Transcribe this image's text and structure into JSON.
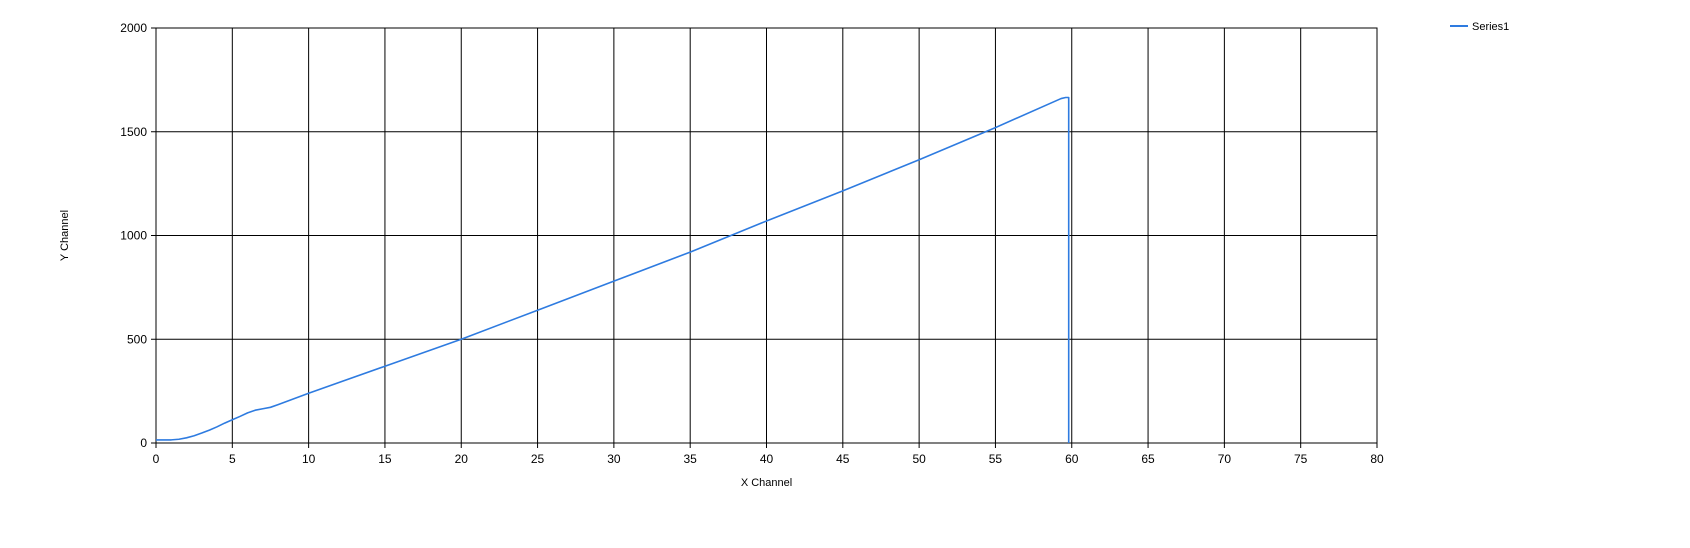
{
  "chart_data": {
    "type": "line",
    "title": "",
    "xlabel": "X Channel",
    "ylabel": "Y Channel",
    "xlim": [
      0,
      80
    ],
    "ylim": [
      0,
      2000
    ],
    "xticks": [
      "0",
      "5",
      "10",
      "15",
      "20",
      "25",
      "30",
      "35",
      "40",
      "45",
      "50",
      "55",
      "60",
      "65",
      "70",
      "75",
      "80"
    ],
    "yticks": [
      "0",
      "500",
      "1000",
      "1500",
      "2000"
    ],
    "grid": true,
    "legend_position": "top-right",
    "series": [
      {
        "name": "Series1",
        "color": "#2e7be0",
        "x": [
          0,
          0.5,
          1.0,
          1.5,
          2.0,
          2.5,
          3.0,
          3.5,
          4.0,
          4.5,
          5.0,
          5.5,
          6.0,
          6.5,
          7.0,
          7.5,
          8.0,
          10,
          15,
          20,
          25,
          30,
          35,
          40,
          45,
          50,
          55,
          59.3,
          59.6,
          59.8,
          59.8
        ],
        "y": [
          15,
          15,
          15,
          18,
          25,
          35,
          48,
          62,
          78,
          96,
          112,
          128,
          145,
          158,
          165,
          172,
          185,
          240,
          370,
          500,
          640,
          780,
          920,
          1070,
          1215,
          1365,
          1520,
          1660,
          1665,
          1665,
          0
        ]
      }
    ]
  }
}
